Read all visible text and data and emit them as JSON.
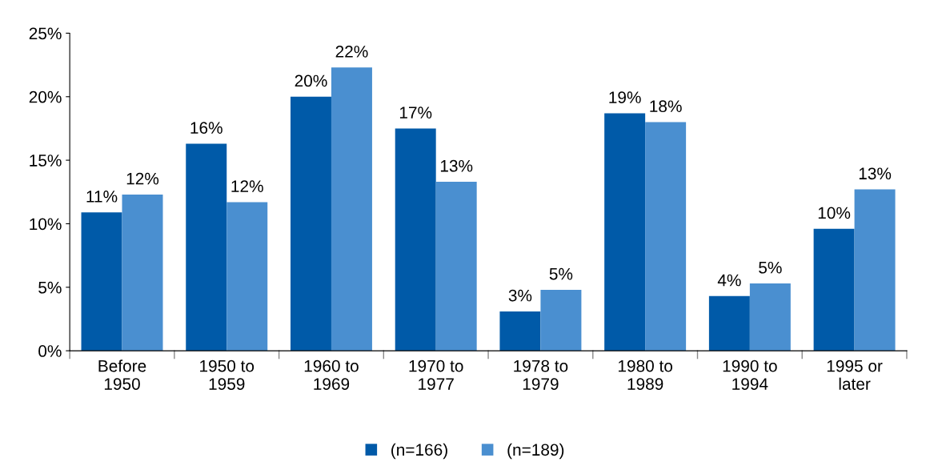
{
  "chart_data": {
    "type": "bar",
    "categories": [
      "Before\n1950",
      "1950 to\n1959",
      "1960 to\n1969",
      "1970 to\n1977",
      "1978 to\n1979",
      "1980 to\n1989",
      "1990 to\n1994",
      "1995 or\nlater"
    ],
    "series": [
      {
        "name": "(n=166)",
        "color": "#005aa8",
        "values": [
          10.9,
          16.3,
          20.0,
          17.5,
          3.1,
          18.7,
          4.3,
          9.6
        ],
        "value_labels": [
          "11%",
          "16%",
          "20%",
          "17%",
          "3%",
          "19%",
          "4%",
          "10%"
        ]
      },
      {
        "name": "(n=189)",
        "color": "#4a8fd0",
        "values": [
          12.3,
          11.7,
          22.3,
          13.3,
          4.8,
          18.0,
          5.3,
          12.7
        ],
        "value_labels": [
          "12%",
          "12%",
          "22%",
          "13%",
          "5%",
          "18%",
          "5%",
          "13%"
        ]
      }
    ],
    "ylim": [
      0,
      25
    ],
    "yticks": [
      {
        "value": 0,
        "label": "0%"
      },
      {
        "value": 5,
        "label": "5%"
      },
      {
        "value": 10,
        "label": "10%"
      },
      {
        "value": 15,
        "label": "15%"
      },
      {
        "value": 20,
        "label": "20%"
      },
      {
        "value": 25,
        "label": "25%"
      }
    ],
    "grid": false,
    "legend": "bottom"
  }
}
